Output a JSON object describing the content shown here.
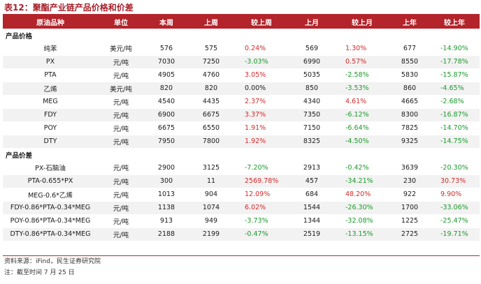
{
  "title": "表12：聚酯产业链产品价格和价差",
  "columns": [
    "原油品种",
    "单位",
    "本周",
    "上周",
    "较上周",
    "上月",
    "较上月",
    "上年",
    "较上年"
  ],
  "sections": [
    {
      "label": "产品价格",
      "rows": [
        {
          "name": "纯苯",
          "unit": "美元/吨",
          "this_week": "576",
          "last_week": "575",
          "wow": "0.24%",
          "wow_dir": "up",
          "last_month": "569",
          "mom": "1.30%",
          "mom_dir": "up",
          "last_year": "677",
          "yoy": "-14.90%",
          "yoy_dir": "down"
        },
        {
          "name": "PX",
          "unit": "元/吨",
          "this_week": "7030",
          "last_week": "7250",
          "wow": "-3.03%",
          "wow_dir": "down",
          "last_month": "6990",
          "mom": "0.57%",
          "mom_dir": "up",
          "last_year": "8550",
          "yoy": "-17.78%",
          "yoy_dir": "down"
        },
        {
          "name": "PTA",
          "unit": "元/吨",
          "this_week": "4905",
          "last_week": "4760",
          "wow": "3.05%",
          "wow_dir": "up",
          "last_month": "5035",
          "mom": "-2.58%",
          "mom_dir": "down",
          "last_year": "5830",
          "yoy": "-15.87%",
          "yoy_dir": "down"
        },
        {
          "name": "乙烯",
          "unit": "美元/吨",
          "this_week": "820",
          "last_week": "820",
          "wow": "0.00%",
          "wow_dir": "flat",
          "last_month": "850",
          "mom": "-3.53%",
          "mom_dir": "down",
          "last_year": "860",
          "yoy": "-4.65%",
          "yoy_dir": "down"
        },
        {
          "name": "MEG",
          "unit": "元/吨",
          "this_week": "4540",
          "last_week": "4435",
          "wow": "2.37%",
          "wow_dir": "up",
          "last_month": "4340",
          "mom": "4.61%",
          "mom_dir": "up",
          "last_year": "4665",
          "yoy": "-2.68%",
          "yoy_dir": "down"
        },
        {
          "name": "FDY",
          "unit": "元/吨",
          "this_week": "6900",
          "last_week": "6675",
          "wow": "3.37%",
          "wow_dir": "up",
          "last_month": "7350",
          "mom": "-6.12%",
          "mom_dir": "down",
          "last_year": "8300",
          "yoy": "-16.87%",
          "yoy_dir": "down"
        },
        {
          "name": "POY",
          "unit": "元/吨",
          "this_week": "6675",
          "last_week": "6550",
          "wow": "1.91%",
          "wow_dir": "up",
          "last_month": "7150",
          "mom": "-6.64%",
          "mom_dir": "down",
          "last_year": "7825",
          "yoy": "-14.70%",
          "yoy_dir": "down"
        },
        {
          "name": "DTY",
          "unit": "元/吨",
          "this_week": "7950",
          "last_week": "7800",
          "wow": "1.92%",
          "wow_dir": "up",
          "last_month": "8325",
          "mom": "-4.50%",
          "mom_dir": "down",
          "last_year": "9325",
          "yoy": "-14.75%",
          "yoy_dir": "down"
        }
      ]
    },
    {
      "label": "产品价差",
      "rows": [
        {
          "name": "PX-石脑油",
          "unit": "元/吨",
          "this_week": "2900",
          "last_week": "3125",
          "wow": "-7.20%",
          "wow_dir": "down",
          "last_month": "2913",
          "mom": "-0.42%",
          "mom_dir": "down",
          "last_year": "3639",
          "yoy": "-20.30%",
          "yoy_dir": "down"
        },
        {
          "name": "PTA-0.655*PX",
          "unit": "元/吨",
          "this_week": "300",
          "last_week": "11",
          "wow": "2569.78%",
          "wow_dir": "up",
          "last_month": "457",
          "mom": "-34.21%",
          "mom_dir": "down",
          "last_year": "230",
          "yoy": "30.73%",
          "yoy_dir": "up"
        },
        {
          "name": "MEG-0.6*乙烯",
          "unit": "元/吨",
          "this_week": "1013",
          "last_week": "904",
          "wow": "12.09%",
          "wow_dir": "up",
          "last_month": "684",
          "mom": "48.20%",
          "mom_dir": "up",
          "last_year": "922",
          "yoy": "9.90%",
          "yoy_dir": "up"
        },
        {
          "name": "FDY-0.86*PTA-0.34*MEG",
          "unit": "元/吨",
          "this_week": "1138",
          "last_week": "1074",
          "wow": "6.02%",
          "wow_dir": "up",
          "last_month": "1544",
          "mom": "-26.30%",
          "mom_dir": "down",
          "last_year": "1700",
          "yoy": "-33.06%",
          "yoy_dir": "down"
        },
        {
          "name": "POY-0.86*PTA-0.34*MEG",
          "unit": "元/吨",
          "this_week": "913",
          "last_week": "949",
          "wow": "-3.73%",
          "wow_dir": "down",
          "last_month": "1344",
          "mom": "-32.08%",
          "mom_dir": "down",
          "last_year": "1225",
          "yoy": "-25.47%",
          "yoy_dir": "down"
        },
        {
          "name": "DTY-0.86*PTA-0.34*MEG",
          "unit": "元/吨",
          "this_week": "2188",
          "last_week": "2199",
          "wow": "-0.47%",
          "wow_dir": "down",
          "last_month": "2519",
          "mom": "-13.15%",
          "mom_dir": "down",
          "last_year": "2725",
          "yoy": "-19.71%",
          "yoy_dir": "down"
        }
      ]
    }
  ],
  "source_note": "资料来源：iFind，民生证券研究院",
  "date_note": "注：截至时间 7 月 25 日",
  "colors": {
    "accent": "#b3242b",
    "up": "#d22a2a",
    "down": "#1c9a2c",
    "stripe": "#f2f2f2"
  }
}
